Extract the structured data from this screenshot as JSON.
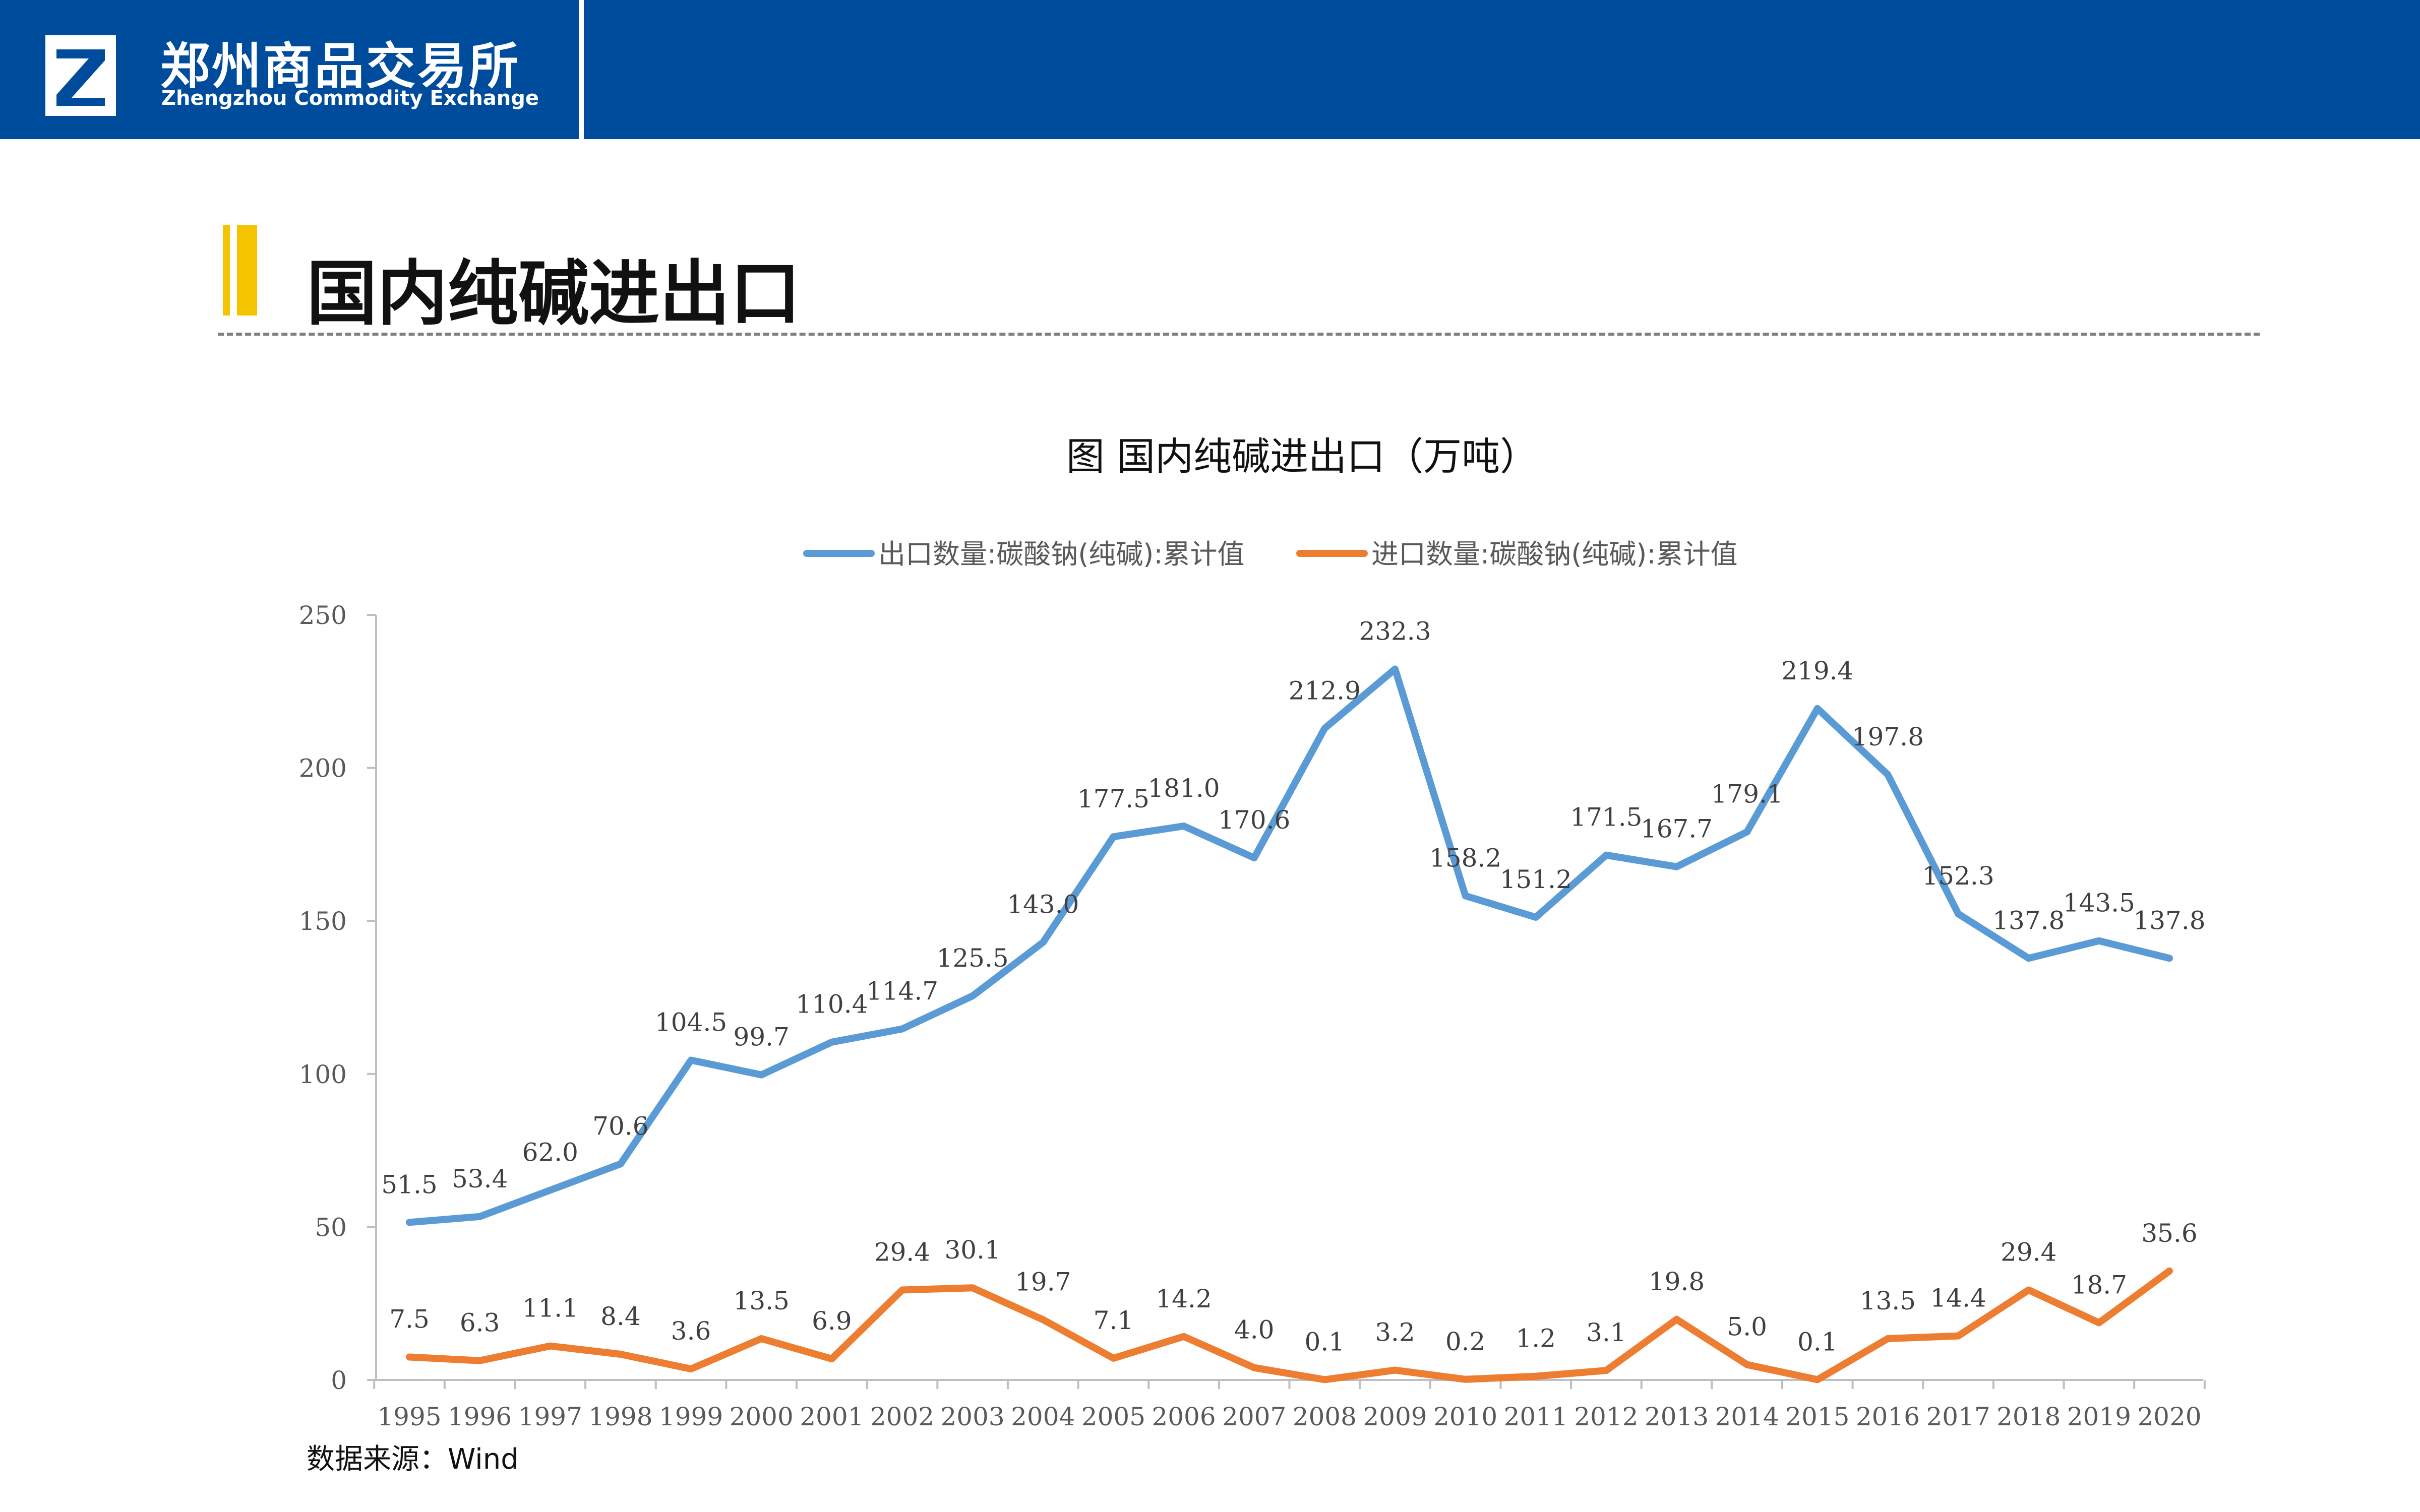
{
  "header": {
    "brand_cn": "郑州商品交易所",
    "brand_en": "Zhengzhou Commodity Exchange",
    "bar_color": "#004c9c",
    "logo_icon": "zce-logo-icon"
  },
  "page": {
    "title": "国内纯碱进出口",
    "accent_color": "#f5c400",
    "source": "数据来源：Wind"
  },
  "chart_data": {
    "type": "line",
    "title": "图 国内纯碱进出口（万吨）",
    "xlabel": "",
    "ylabel": "",
    "ylim": [
      0,
      250
    ],
    "yticks": [
      0,
      50,
      100,
      150,
      200,
      250
    ],
    "grid": false,
    "legend_position": "top-center",
    "categories": [
      "1995",
      "1996",
      "1997",
      "1998",
      "1999",
      "2000",
      "2001",
      "2002",
      "2003",
      "2004",
      "2005",
      "2006",
      "2007",
      "2008",
      "2009",
      "2010",
      "2011",
      "2012",
      "2013",
      "2014",
      "2015",
      "2016",
      "2017",
      "2018",
      "2019",
      "2020"
    ],
    "series": [
      {
        "name": "出口数量:碳酸钠(纯碱):累计值",
        "color": "#5b9bd5",
        "values": [
          51.5,
          53.4,
          62.0,
          70.6,
          104.5,
          99.7,
          110.4,
          114.7,
          125.5,
          143.0,
          177.5,
          181.0,
          170.6,
          212.9,
          232.3,
          158.2,
          151.2,
          171.5,
          167.7,
          179.1,
          219.4,
          197.8,
          152.3,
          137.8,
          143.5,
          137.8
        ]
      },
      {
        "name": "进口数量:碳酸钠(纯碱):累计值",
        "color": "#ed7d31",
        "values": [
          7.5,
          6.3,
          11.1,
          8.4,
          3.6,
          13.5,
          6.9,
          29.4,
          30.1,
          19.7,
          7.1,
          14.2,
          4.0,
          0.1,
          3.2,
          0.2,
          1.2,
          3.1,
          19.8,
          5.0,
          0.1,
          13.5,
          14.4,
          29.4,
          18.7,
          35.6
        ]
      }
    ]
  }
}
